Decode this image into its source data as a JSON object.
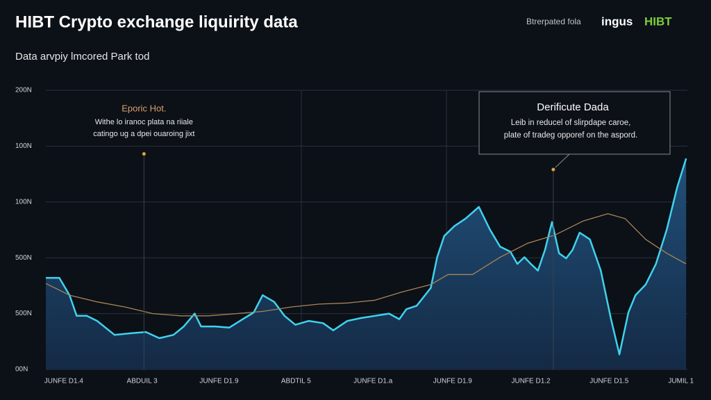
{
  "chart_data": {
    "type": "area",
    "title": "HIBT Crypto exchange liquirity data",
    "subtitle": "Data arvpiy lmcored Park tod",
    "header_note": "Btrerpated fola",
    "brand": [
      "ingus",
      "HIBT"
    ],
    "ylim": [
      0,
      5
    ],
    "yticks": [
      {
        "value": 0,
        "label": "00N"
      },
      {
        "value": 1,
        "label": "500N"
      },
      {
        "value": 2,
        "label": "500N"
      },
      {
        "value": 3,
        "label": "100N"
      },
      {
        "value": 4,
        "label": "100N"
      },
      {
        "value": 5,
        "label": "200N"
      }
    ],
    "xlim": [
      0,
      100
    ],
    "xticks": [
      {
        "value": 2.8,
        "label": "JUNFE D1.4"
      },
      {
        "value": 15,
        "label": "ABDUIL 3"
      },
      {
        "value": 27,
        "label": "JUNFE D1.9"
      },
      {
        "value": 39,
        "label": "ABDTIL 5"
      },
      {
        "value": 51,
        "label": "JUNFE D1.a"
      },
      {
        "value": 63.4,
        "label": "JUNFE D1.9"
      },
      {
        "value": 75.6,
        "label": "JUNFE D1.2"
      },
      {
        "value": 87.8,
        "label": "JUNFE D1.5"
      },
      {
        "value": 99,
        "label": "JUMIL 1"
      }
    ],
    "grid": true,
    "series": [
      {
        "color": "#3fd3ee",
        "x": [
          0,
          2.1,
          3.7,
          4.8,
          6.4,
          8.0,
          10.7,
          13.4,
          15.6,
          17.7,
          19.9,
          21.5,
          23.2,
          24.2,
          26.4,
          28.6,
          30.7,
          32.4,
          33.8,
          35.6,
          37.2,
          38.9,
          41.0,
          43.2,
          44.8,
          47.0,
          49.1,
          51.3,
          53.5,
          55.1,
          56.2,
          57.8,
          60.0,
          61.0,
          62.1,
          63.7,
          65.4,
          67.5,
          69.2,
          70.8,
          72.4,
          73.5,
          74.6,
          75.6,
          76.7,
          77.8,
          78.9,
          80.0,
          81.1,
          82.1,
          83.2,
          84.8,
          86.5,
          88.1,
          89.4,
          90.8,
          91.9,
          93.5,
          95.1,
          96.8,
          98.4,
          99.8
        ],
        "values": [
          1.64,
          1.64,
          1.33,
          0.96,
          0.96,
          0.87,
          0.62,
          0.65,
          0.67,
          0.56,
          0.62,
          0.77,
          1.0,
          0.77,
          0.77,
          0.75,
          0.9,
          1.02,
          1.33,
          1.21,
          0.96,
          0.8,
          0.87,
          0.83,
          0.7,
          0.87,
          0.92,
          0.96,
          1.0,
          0.9,
          1.08,
          1.14,
          1.46,
          2.01,
          2.39,
          2.57,
          2.7,
          2.91,
          2.51,
          2.2,
          2.11,
          1.89,
          2.01,
          1.89,
          1.77,
          2.14,
          2.64,
          2.08,
          1.99,
          2.14,
          2.45,
          2.33,
          1.77,
          0.9,
          0.27,
          1.02,
          1.33,
          1.52,
          1.89,
          2.51,
          3.26,
          3.78
        ]
      },
      {
        "color": "#a88656",
        "x": [
          0,
          3.7,
          8.0,
          12.3,
          16.7,
          21.0,
          25.3,
          29.7,
          33.8,
          38.3,
          42.6,
          47.0,
          51.3,
          55.6,
          60.0,
          62.7,
          66.5,
          70.8,
          75.1,
          79.4,
          83.8,
          87.6,
          90.3,
          93.5,
          96.8,
          99.8
        ],
        "values": [
          1.54,
          1.33,
          1.21,
          1.12,
          1.0,
          0.96,
          0.96,
          1.0,
          1.04,
          1.12,
          1.17,
          1.19,
          1.24,
          1.39,
          1.52,
          1.7,
          1.7,
          2.01,
          2.26,
          2.41,
          2.66,
          2.79,
          2.7,
          2.33,
          2.08,
          1.89
        ]
      }
    ],
    "annotations": [
      {
        "title": "Eporic Hot.",
        "lines": [
          "Withe lo iranoc plata na riiale",
          "catingo ug a dpei ouaroing jixt"
        ],
        "x": 15.3,
        "y": 3.86
      },
      {
        "title": "Derificute Dada",
        "lines": [
          "Leib in reducel of slirpdape caroe,",
          "plate of tradeg opporef on the aspord."
        ],
        "x": 79.1,
        "y": 3.58
      }
    ]
  }
}
